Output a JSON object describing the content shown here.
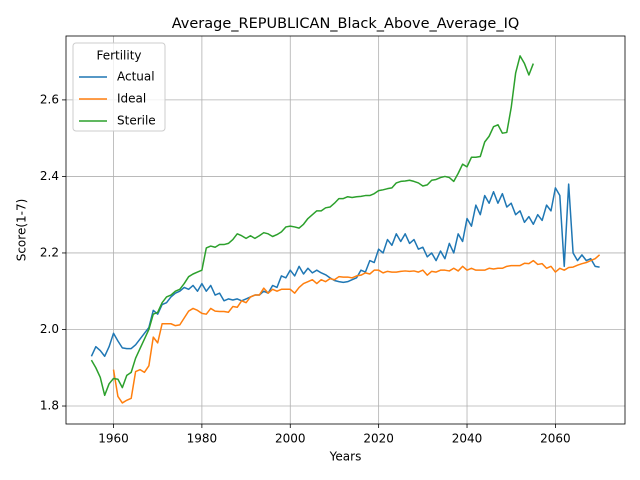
{
  "chart_data": {
    "type": "line",
    "title": "Average_REPUBLICAN_Black_Above_Average_IQ",
    "x_label": "Years",
    "y_label": "Score(1-7)",
    "legend_title": "Fertility",
    "legend_loc": "upper left",
    "grid": true,
    "x": [
      1955,
      1956,
      1957,
      1958,
      1959,
      1960,
      1961,
      1962,
      1963,
      1964,
      1965,
      1966,
      1967,
      1968,
      1969,
      1970,
      1971,
      1972,
      1973,
      1974,
      1975,
      1976,
      1977,
      1978,
      1979,
      1980,
      1981,
      1982,
      1983,
      1984,
      1985,
      1986,
      1987,
      1988,
      1989,
      1990,
      1991,
      1992,
      1993,
      1994,
      1995,
      1996,
      1997,
      1998,
      1999,
      2000,
      2001,
      2002,
      2003,
      2004,
      2005,
      2006,
      2007,
      2008,
      2009,
      2010,
      2011,
      2012,
      2013,
      2014,
      2015,
      2016,
      2017,
      2018,
      2019,
      2020,
      2021,
      2022,
      2023,
      2024,
      2025,
      2026,
      2027,
      2028,
      2029,
      2030,
      2031,
      2032,
      2033,
      2034,
      2035,
      2036,
      2037,
      2038,
      2039,
      2040,
      2041,
      2042,
      2043,
      2044,
      2045,
      2046,
      2047,
      2048,
      2049,
      2050,
      2051,
      2052,
      2053,
      2054,
      2055,
      2056,
      2057,
      2058,
      2059,
      2060,
      2061,
      2062,
      2063,
      2064,
      2065,
      2066,
      2067,
      2068,
      2069,
      2070
    ],
    "series": [
      {
        "name": "Actual",
        "color": "#1f77b4",
        "values": [
          1.93,
          1.955,
          1.945,
          1.93,
          1.955,
          1.99,
          1.97,
          1.952,
          1.95,
          1.95,
          1.96,
          1.975,
          1.99,
          2.005,
          2.05,
          2.04,
          2.065,
          2.07,
          2.085,
          2.095,
          2.1,
          2.11,
          2.105,
          2.115,
          2.1,
          2.12,
          2.1,
          2.115,
          2.09,
          2.095,
          2.075,
          2.08,
          2.077,
          2.08,
          2.075,
          2.08,
          2.085,
          2.09,
          2.09,
          2.1,
          2.095,
          2.115,
          2.11,
          2.14,
          2.135,
          2.155,
          2.14,
          2.165,
          2.145,
          2.16,
          2.148,
          2.155,
          2.148,
          2.143,
          2.135,
          2.128,
          2.125,
          2.123,
          2.125,
          2.13,
          2.135,
          2.155,
          2.15,
          2.18,
          2.175,
          2.21,
          2.2,
          2.235,
          2.22,
          2.25,
          2.23,
          2.25,
          2.225,
          2.235,
          2.21,
          2.215,
          2.19,
          2.2,
          2.18,
          2.205,
          2.185,
          2.225,
          2.2,
          2.25,
          2.23,
          2.29,
          2.27,
          2.325,
          2.3,
          2.35,
          2.33,
          2.36,
          2.33,
          2.355,
          2.32,
          2.33,
          2.3,
          2.31,
          2.28,
          2.295,
          2.275,
          2.3,
          2.285,
          2.325,
          2.31,
          2.37,
          2.35,
          2.165,
          2.38,
          2.2,
          2.18,
          2.195,
          2.18,
          2.185,
          2.165,
          2.163
        ]
      },
      {
        "name": "Ideal",
        "color": "#ff7f0e",
        "values": [
          null,
          null,
          null,
          null,
          null,
          1.895,
          1.825,
          1.808,
          1.815,
          1.82,
          1.89,
          1.895,
          1.888,
          1.905,
          1.98,
          1.965,
          2.015,
          2.015,
          2.015,
          2.01,
          2.012,
          2.03,
          2.048,
          2.055,
          2.05,
          2.042,
          2.04,
          2.055,
          2.048,
          2.047,
          2.047,
          2.045,
          2.06,
          2.058,
          2.075,
          2.07,
          2.085,
          2.09,
          2.09,
          2.108,
          2.095,
          2.105,
          2.1,
          2.105,
          2.105,
          2.105,
          2.095,
          2.11,
          2.12,
          2.125,
          2.13,
          2.12,
          2.13,
          2.125,
          2.133,
          2.13,
          2.138,
          2.137,
          2.137,
          2.135,
          2.14,
          2.142,
          2.148,
          2.145,
          2.155,
          2.155,
          2.148,
          2.152,
          2.15,
          2.15,
          2.152,
          2.153,
          2.152,
          2.153,
          2.15,
          2.155,
          2.142,
          2.152,
          2.15,
          2.155,
          2.155,
          2.153,
          2.16,
          2.153,
          2.165,
          2.155,
          2.16,
          2.155,
          2.155,
          2.155,
          2.16,
          2.158,
          2.16,
          2.16,
          2.165,
          2.167,
          2.167,
          2.167,
          2.173,
          2.172,
          2.18,
          2.17,
          2.172,
          2.16,
          2.165,
          2.15,
          2.16,
          2.155,
          2.162,
          2.163,
          2.168,
          2.172,
          2.175,
          2.18,
          2.185,
          2.195
        ]
      },
      {
        "name": "Sterile",
        "color": "#2ca02c",
        "values": [
          1.92,
          1.9,
          1.875,
          1.828,
          1.858,
          1.872,
          1.87,
          1.848,
          1.88,
          1.888,
          1.925,
          1.95,
          1.975,
          2.0,
          2.04,
          2.045,
          2.07,
          2.085,
          2.09,
          2.1,
          2.105,
          2.12,
          2.138,
          2.145,
          2.15,
          2.155,
          2.213,
          2.218,
          2.215,
          2.222,
          2.222,
          2.225,
          2.235,
          2.25,
          2.245,
          2.238,
          2.245,
          2.238,
          2.245,
          2.253,
          2.25,
          2.243,
          2.248,
          2.255,
          2.268,
          2.27,
          2.268,
          2.265,
          2.275,
          2.29,
          2.3,
          2.31,
          2.31,
          2.318,
          2.32,
          2.33,
          2.342,
          2.342,
          2.347,
          2.345,
          2.347,
          2.348,
          2.35,
          2.35,
          2.355,
          2.363,
          2.365,
          2.368,
          2.37,
          2.383,
          2.387,
          2.388,
          2.39,
          2.387,
          2.383,
          2.375,
          2.378,
          2.39,
          2.392,
          2.397,
          2.4,
          2.397,
          2.387,
          2.408,
          2.432,
          2.425,
          2.45,
          2.45,
          2.452,
          2.49,
          2.505,
          2.53,
          2.535,
          2.513,
          2.515,
          2.58,
          2.67,
          2.715,
          2.695,
          2.665,
          2.695,
          null,
          null,
          null,
          null,
          null,
          null,
          null,
          null,
          null,
          null,
          null,
          null,
          null,
          null,
          null
        ]
      }
    ],
    "xlim": [
      1949.25,
      2075.75
    ],
    "xticks": [
      1960,
      1980,
      2000,
      2020,
      2040,
      2060
    ],
    "ylim": [
      1.753,
      2.767
    ],
    "yticks": [
      1.8,
      {
        "value": 2.0,
        "label": "2.0"
      },
      2.2,
      2.4,
      2.6
    ]
  }
}
